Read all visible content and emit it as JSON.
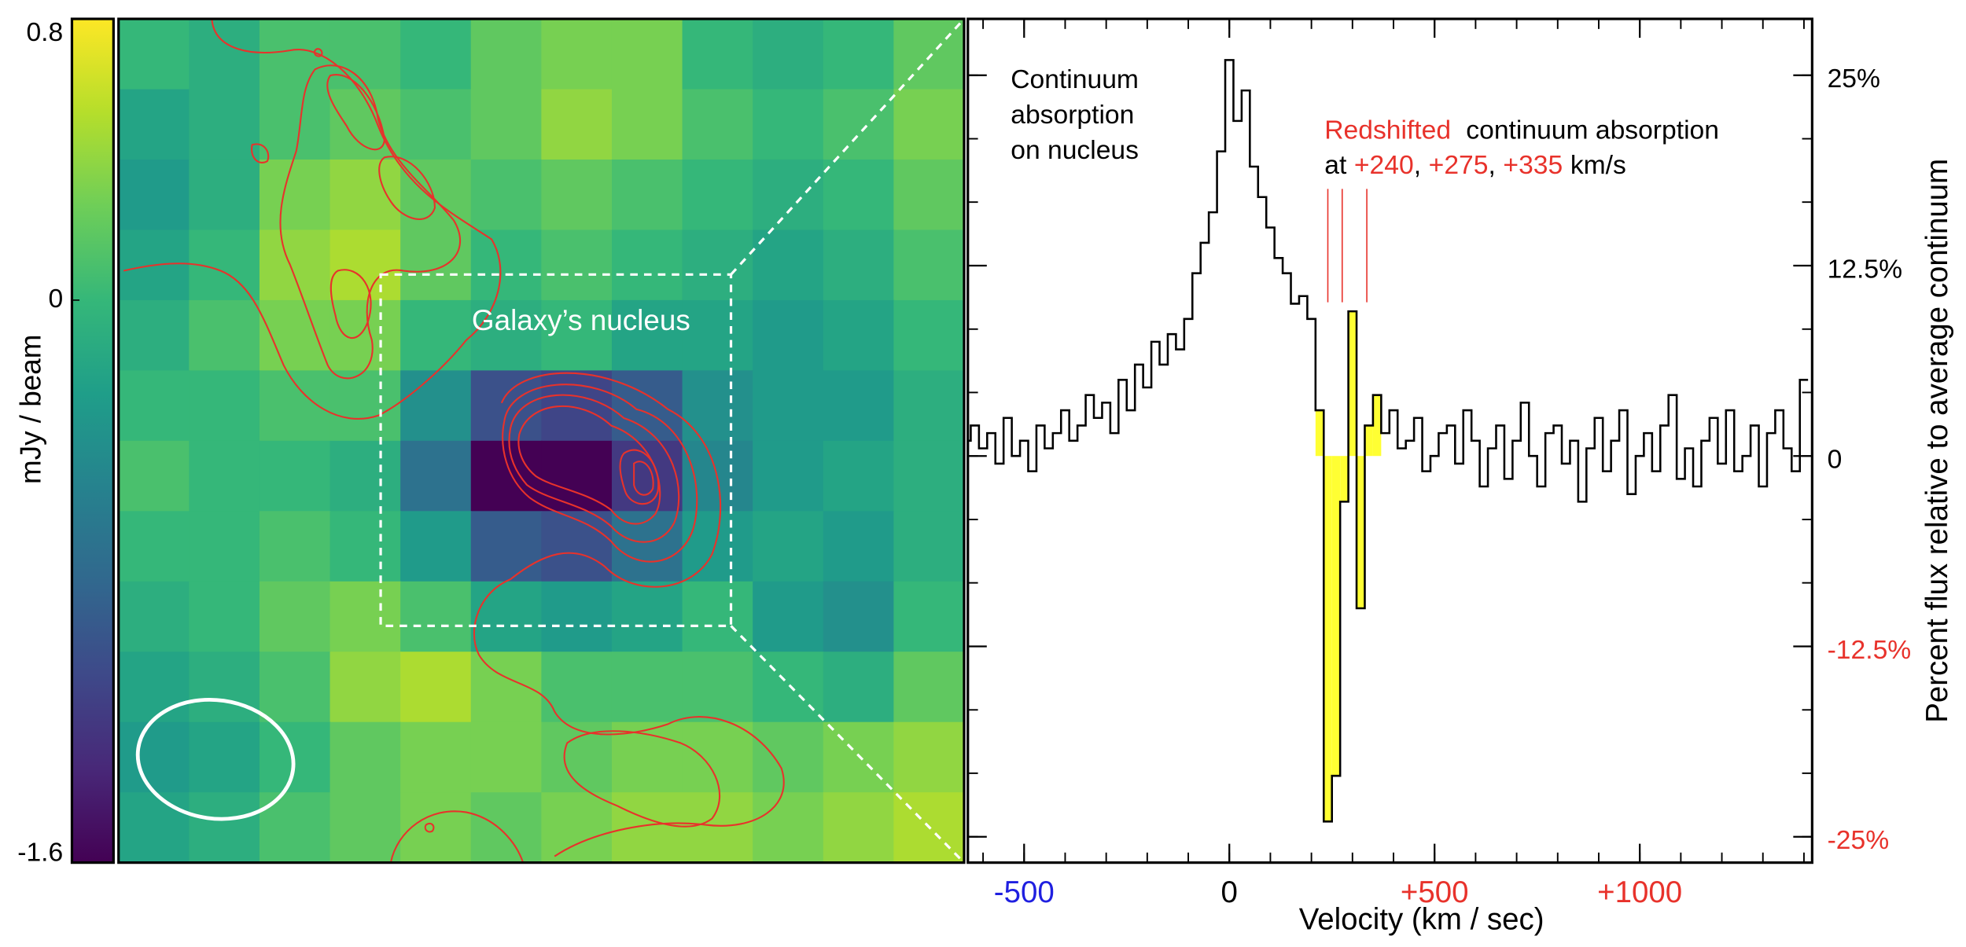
{
  "chart_data": [
    {
      "type": "heatmap",
      "colormap": "viridis",
      "colorbar_label": "mJy / beam",
      "clim": [
        -1.6,
        0.8
      ],
      "cticks": [
        0.8,
        0,
        -1.6
      ],
      "annotation": "Galaxy’s nucleus",
      "values": [
        [
          0.0,
          -0.1,
          0.1,
          0.1,
          0.0,
          0.2,
          0.3,
          0.3,
          0.0,
          -0.1,
          0.0,
          0.2
        ],
        [
          -0.2,
          -0.1,
          0.1,
          0.2,
          0.1,
          0.2,
          0.4,
          0.3,
          0.1,
          0.0,
          0.1,
          0.3
        ],
        [
          -0.3,
          -0.1,
          0.3,
          0.4,
          0.2,
          0.1,
          0.2,
          0.1,
          0.0,
          -0.1,
          0.0,
          0.2
        ],
        [
          -0.2,
          0.0,
          0.4,
          0.5,
          0.2,
          0.0,
          0.1,
          0.0,
          -0.1,
          -0.2,
          -0.1,
          0.1
        ],
        [
          -0.1,
          0.1,
          0.3,
          0.3,
          0.0,
          -0.1,
          0.0,
          -0.2,
          -0.2,
          -0.3,
          -0.2,
          0.0
        ],
        [
          0.0,
          0.0,
          0.1,
          0.1,
          -0.4,
          -1.0,
          -1.1,
          -0.9,
          -0.4,
          -0.3,
          -0.3,
          -0.1
        ],
        [
          0.1,
          0.0,
          0.0,
          -0.1,
          -0.7,
          -1.6,
          -1.6,
          -1.2,
          -0.5,
          -0.3,
          -0.2,
          -0.1
        ],
        [
          0.0,
          0.0,
          0.1,
          0.0,
          -0.3,
          -0.9,
          -1.0,
          -0.7,
          -0.3,
          -0.2,
          -0.3,
          -0.1
        ],
        [
          -0.1,
          0.0,
          0.2,
          0.3,
          0.1,
          -0.2,
          -0.3,
          -0.2,
          0.0,
          -0.3,
          -0.4,
          0.0
        ],
        [
          -0.2,
          -0.1,
          0.1,
          0.4,
          0.5,
          0.3,
          0.1,
          0.1,
          0.1,
          0.0,
          -0.1,
          0.2
        ],
        [
          -0.3,
          -0.2,
          0.0,
          0.2,
          0.3,
          0.3,
          0.2,
          0.3,
          0.3,
          0.2,
          0.3,
          0.4
        ],
        [
          -0.2,
          -0.1,
          0.1,
          0.2,
          0.3,
          0.2,
          0.3,
          0.4,
          0.4,
          0.3,
          0.4,
          0.5
        ]
      ]
    },
    {
      "type": "step",
      "color": "#000000",
      "fill_color": "#ffff33",
      "fill_range": [
        220,
        360
      ],
      "xlabel": "Velocity (km / sec)",
      "ylabel": "Percent flux relative to average continuum",
      "xlim": [
        -637,
        1420
      ],
      "ylim": [
        -26.7,
        28.7
      ],
      "xticks": [
        -500,
        0,
        {
          "value": 500,
          "label": "+500"
        },
        {
          "value": 1000,
          "label": "+1000"
        }
      ],
      "xtick_colors": [
        "#1f1fe0",
        "#000000",
        "#e8322b",
        "#e8322b"
      ],
      "xminor": [
        -600,
        -500,
        -400,
        -300,
        -200,
        -100,
        0,
        100,
        200,
        300,
        400,
        500,
        600,
        700,
        800,
        900,
        1000,
        1100,
        1200,
        1300,
        1400
      ],
      "yticks": [
        {
          "value": 25,
          "label": "25%"
        },
        {
          "value": 12.5,
          "label": "12.5%"
        },
        0,
        {
          "value": -12.5,
          "label": "-12.5%"
        },
        {
          "value": -25,
          "label": "-25%"
        }
      ],
      "ytick_colors": [
        "#000000",
        "#000000",
        "#000000",
        "#e8322b",
        "#e8322b"
      ],
      "yminor": [
        -25,
        -20.83,
        -16.67,
        -12.5,
        -8.33,
        -4.17,
        0,
        4.17,
        8.33,
        12.5,
        16.67,
        20.83,
        25
      ],
      "note1": [
        "Continuum",
        "absorption",
        "on nucleus"
      ],
      "note2": {
        "lead": "Redshifted",
        "rest": "continuum absorption",
        "prefix": "at",
        "separator": ",",
        "suffix": "km/s",
        "color": "#e8322b"
      },
      "markers": [
        {
          "value": 240,
          "label": "+240"
        },
        {
          "value": 275,
          "label": "+275"
        },
        {
          "value": 335,
          "label": "+335"
        }
      ],
      "marker_color": "#e8322b",
      "x": [
        -640,
        -620,
        -600,
        -580,
        -560,
        -540,
        -520,
        -500,
        -480,
        -460,
        -440,
        -420,
        -400,
        -380,
        -360,
        -340,
        -320,
        -300,
        -280,
        -260,
        -240,
        -220,
        -200,
        -180,
        -160,
        -140,
        -120,
        -100,
        -80,
        -60,
        -40,
        -20,
        0,
        20,
        40,
        60,
        80,
        100,
        120,
        140,
        160,
        180,
        200,
        220,
        240,
        260,
        280,
        300,
        320,
        340,
        360,
        380,
        400,
        420,
        440,
        460,
        480,
        500,
        520,
        540,
        560,
        580,
        600,
        620,
        640,
        660,
        680,
        700,
        720,
        740,
        760,
        780,
        800,
        820,
        840,
        860,
        880,
        900,
        920,
        940,
        960,
        980,
        1000,
        1020,
        1040,
        1060,
        1080,
        1100,
        1120,
        1140,
        1160,
        1180,
        1200,
        1220,
        1240,
        1260,
        1280,
        1300,
        1320,
        1340,
        1360,
        1380,
        1400
      ],
      "values": [
        1,
        2,
        0.5,
        1.5,
        -0.5,
        2.5,
        0,
        1,
        -1,
        2,
        0.5,
        1.5,
        3,
        1,
        2,
        4,
        2.5,
        3.5,
        1.5,
        5,
        3,
        6,
        4.5,
        7.5,
        6,
        8,
        7,
        9,
        12,
        14,
        16,
        20,
        26,
        22,
        24,
        19,
        17,
        15,
        13,
        12,
        10,
        10.5,
        9,
        3,
        -24,
        -21,
        -3,
        9.5,
        -10,
        2,
        4,
        1.5,
        3,
        0.5,
        1,
        2.5,
        -1,
        0,
        1.5,
        2,
        -0.5,
        3,
        1,
        -2,
        0.5,
        2,
        -1.5,
        1,
        3.5,
        0,
        -2,
        1.5,
        2,
        -0.5,
        1,
        -3,
        0.5,
        2.5,
        -1,
        1,
        3,
        -2.5,
        0,
        1.5,
        -1,
        2,
        4,
        -1.5,
        0.5,
        -2,
        1,
        2.5,
        -0.5,
        3,
        -1,
        0,
        2,
        -2,
        1.5,
        3,
        0.5,
        -1,
        5
      ]
    }
  ]
}
